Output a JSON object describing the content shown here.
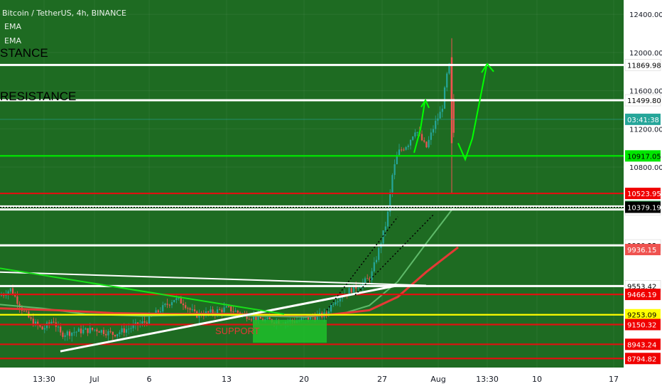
{
  "header": {
    "symbol_line": "Bitcoin / TetherUS, 4h, BINANCE",
    "indicators": [
      "EMA",
      "EMA"
    ]
  },
  "annotations": {
    "resistance_top": "STANCE",
    "resistance_second": "RESISTANCE",
    "support": "SUPPORT"
  },
  "chart_data": {
    "type": "candlestick",
    "symbol": "Bitcoin / TetherUS",
    "interval": "4h",
    "exchange": "BINANCE",
    "ylim": [
      8700,
      12550
    ],
    "y_ticks": [
      12400,
      12000,
      11600,
      11200,
      10800
    ],
    "y_tick_labels": [
      "12400.00",
      "12000.00",
      "11600.00",
      "11200.00",
      "10800.00"
    ],
    "x_ticks": [
      "13:30",
      "Jul",
      "6",
      "13",
      "20",
      "27",
      "Aug",
      "13:30",
      "10",
      "17"
    ],
    "horizontal_levels": [
      {
        "value": 11869.98,
        "label": "11869.98",
        "color": "#ffffff",
        "tag_bg": "#ffffff",
        "tag_fg": "#000000"
      },
      {
        "value": 11499.8,
        "label": "11499.80",
        "color": "#ffffff",
        "tag_bg": "#ffffff",
        "tag_fg": "#000000"
      },
      {
        "value": 10917.05,
        "label": "10917.05",
        "color": "#00e600",
        "tag_bg": "#00e600",
        "tag_fg": "#000000"
      },
      {
        "value": 10523.95,
        "label": "10523.95",
        "color": "#e01010",
        "tag_bg": "#f00000",
        "tag_fg": "#ffffff"
      },
      {
        "value": 10387.33,
        "label": "10387.33",
        "color": "#ffffff",
        "tag_bg": "#2e9f4f",
        "tag_fg": "#ffffff"
      },
      {
        "value": 10356.19,
        "label": "10356.19",
        "color": "#ffffff",
        "tag_bg": "#ffffff",
        "tag_fg": "#000000"
      },
      {
        "value": 9980.22,
        "label": "9980.22",
        "color": "#ffffff",
        "tag_bg": "#ffffff",
        "tag_fg": "#000000"
      },
      {
        "value": 9553.42,
        "label": "9553.42",
        "color": "#ffffff",
        "tag_bg": "#ffffff",
        "tag_fg": "#000000"
      },
      {
        "value": 9466.19,
        "label": "9466.19",
        "color": "#e01010",
        "tag_bg": "#f00000",
        "tag_fg": "#ffffff"
      },
      {
        "value": 9253.09,
        "label": "9253.09",
        "color": "#ffff00",
        "tag_bg": "#ffff00",
        "tag_fg": "#000000"
      },
      {
        "value": 9150.32,
        "label": "9150.32",
        "color": "#e01010",
        "tag_bg": "#f00000",
        "tag_fg": "#ffffff"
      },
      {
        "value": 8943.24,
        "label": "8943.24",
        "color": "#e01010",
        "tag_bg": "#f00000",
        "tag_fg": "#ffffff"
      },
      {
        "value": 8794.82,
        "label": "8794.82",
        "color": "#e01010",
        "tag_bg": "#f00000",
        "tag_fg": "#ffffff"
      }
    ],
    "price_tags": [
      {
        "value": 11300,
        "label": "03:41:38",
        "tag_bg": "#26a69a",
        "tag_fg": "#ffffff"
      },
      {
        "value": 10379.19,
        "label": "10379.19",
        "tag_bg": "#000000",
        "tag_fg": "#ffffff"
      },
      {
        "value": 9936.15,
        "label": "9936.15",
        "tag_bg": "#ef5350",
        "tag_fg": "#ffffff"
      }
    ],
    "colors": {
      "background": "#1e6b22",
      "candle_up": "#26a69a",
      "candle_down": "#ef5350",
      "ema_fast": "#5fba6a",
      "ema_slow": "#e53935",
      "forecast": "#00ff00"
    }
  }
}
